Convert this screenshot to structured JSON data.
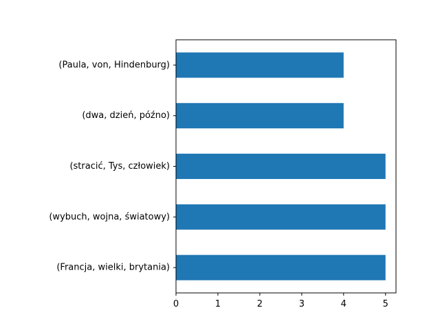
{
  "chart_data": {
    "type": "bar",
    "orientation": "horizontal",
    "categories": [
      "(Paula, von, Hindenburg)",
      "(dwa, dzień, późno)",
      "(stracić, Tys, człowiek)",
      "(wybuch, wojna, światowy)",
      "(Francja, wielki, brytania)"
    ],
    "values": [
      4,
      4,
      5,
      5,
      5
    ],
    "xlim": [
      0,
      5.25
    ],
    "xticks": [
      "0",
      "1",
      "2",
      "3",
      "4",
      "5"
    ],
    "title": "",
    "xlabel": "",
    "ylabel": "",
    "grid": false,
    "bar_color": "#1f77b4"
  }
}
